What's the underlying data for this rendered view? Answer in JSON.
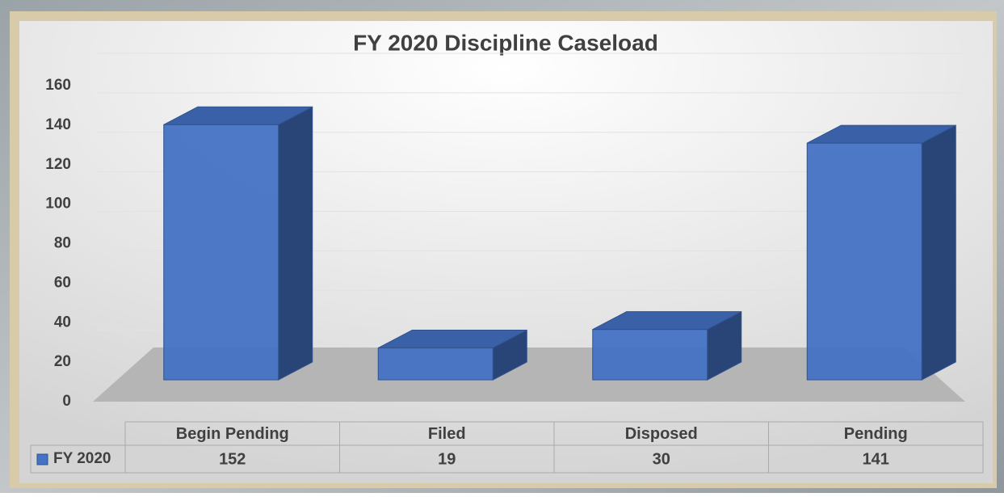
{
  "chart_data": {
    "type": "bar3d",
    "title": "FY 2020 Discipline Caseload",
    "categories": [
      "Begin Pending",
      "Filed",
      "Disposed",
      "Pending"
    ],
    "series": [
      {
        "name": "FY 2020",
        "color": "#4472c4",
        "values": [
          152,
          19,
          30,
          141
        ]
      }
    ],
    "ylim": [
      0,
      160
    ],
    "yticks": [
      0,
      20,
      40,
      60,
      80,
      100,
      120,
      140,
      160
    ],
    "grid": true,
    "data_table": true
  }
}
